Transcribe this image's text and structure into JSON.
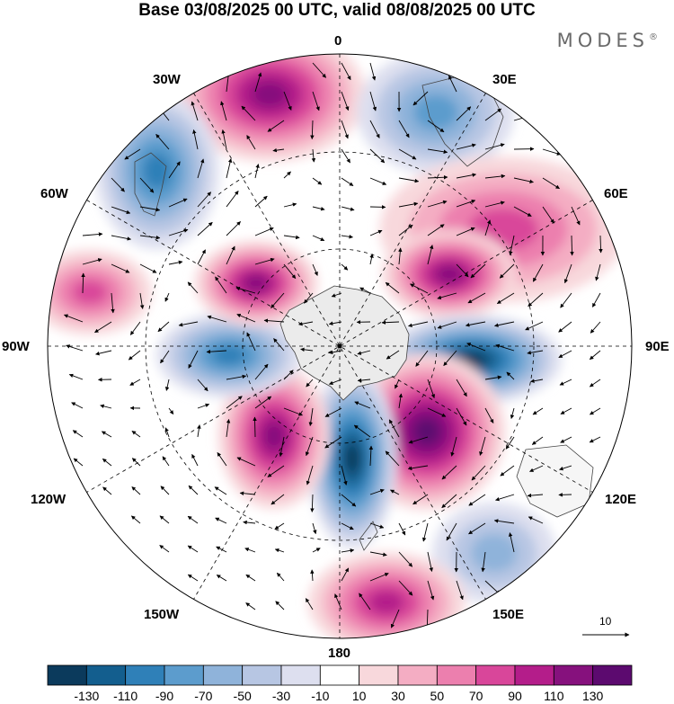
{
  "title": "Base 03/08/2025 00 UTC, valid 08/08/2025 00 UTC",
  "brand": "MODES",
  "brand_mark": "®",
  "longitude_labels": {
    "top": "0",
    "e30": "30E",
    "e60": "60E",
    "e90": "90E",
    "e120": "120E",
    "e150": "150E",
    "bottom": "180",
    "w150": "150W",
    "w120": "120W",
    "w90": "90W",
    "w60": "60W",
    "w30": "30W"
  },
  "reference_vector_label": "10",
  "colorbar": {
    "colors": [
      "#0b3a5c",
      "#135e8e",
      "#2f80b8",
      "#5c9ccd",
      "#8fb3da",
      "#b7c6e3",
      "#dddfef",
      "#ffffff",
      "#f8d8dc",
      "#f4adc3",
      "#ec7fae",
      "#d9469a",
      "#b41d8a",
      "#86117d",
      "#5c0a6f"
    ],
    "ticks": [
      "-130",
      "-110",
      "-90",
      "-70",
      "-50",
      "-30",
      "-10",
      "10",
      "30",
      "50",
      "70",
      "90",
      "110",
      "130"
    ]
  },
  "map_data": {
    "projection": "south-polar-stereographic",
    "anomaly_centers": [
      {
        "name": "pink-0",
        "sign": "positive",
        "magnitude": 110
      },
      {
        "name": "blue-30e",
        "sign": "negative",
        "magnitude": 70
      },
      {
        "name": "blue-45w",
        "sign": "negative",
        "magnitude": 90
      },
      {
        "name": "pink-50e",
        "sign": "positive",
        "magnitude": 70
      },
      {
        "name": "pink-60e-inner",
        "sign": "positive",
        "magnitude": 110
      },
      {
        "name": "blue-90e",
        "sign": "negative",
        "magnitude": 130
      },
      {
        "name": "pink-110e",
        "sign": "positive",
        "magnitude": 130
      },
      {
        "name": "blue-150e",
        "sign": "negative",
        "magnitude": 50
      },
      {
        "name": "pink-180",
        "sign": "positive",
        "magnitude": 90
      },
      {
        "name": "blue-160w",
        "sign": "negative",
        "magnitude": 130
      },
      {
        "name": "pink-135w",
        "sign": "positive",
        "magnitude": 110
      },
      {
        "name": "blue-90w",
        "sign": "negative",
        "magnitude": 90
      },
      {
        "name": "pink-75w",
        "sign": "positive",
        "magnitude": 110
      },
      {
        "name": "pink-80w-outer",
        "sign": "positive",
        "magnitude": 70
      }
    ]
  }
}
